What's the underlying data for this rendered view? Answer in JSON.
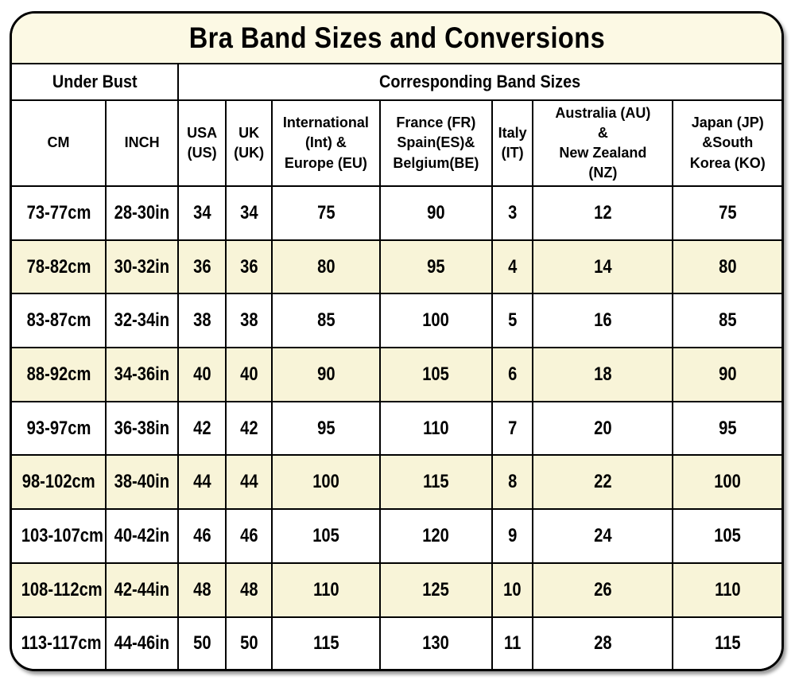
{
  "title": "Bra Band Sizes and Conversions",
  "chart_data": {
    "type": "table",
    "title": "Bra Band Sizes and Conversions",
    "column_groups": [
      {
        "label": "Under Bust",
        "span": 2
      },
      {
        "label": "Corresponding Band Sizes",
        "span": 7
      }
    ],
    "columns": [
      "CM",
      "INCH",
      "USA\n(US)",
      "UK\n(UK)",
      "International\n(Int) &\nEurope (EU)",
      "France (FR)\nSpain(ES)&\nBelgium(BE)",
      "Italy\n(IT)",
      "Australia (AU)\n&\nNew Zealand\n(NZ)",
      "Japan (JP)\n&South\nKorea (KO)"
    ],
    "rows": [
      [
        "73-77cm",
        "28-30in",
        "34",
        "34",
        "75",
        "90",
        "3",
        "12",
        "75"
      ],
      [
        "78-82cm",
        "30-32in",
        "36",
        "36",
        "80",
        "95",
        "4",
        "14",
        "80"
      ],
      [
        "83-87cm",
        "32-34in",
        "38",
        "38",
        "85",
        "100",
        "5",
        "16",
        "85"
      ],
      [
        "88-92cm",
        "34-36in",
        "40",
        "40",
        "90",
        "105",
        "6",
        "18",
        "90"
      ],
      [
        "93-97cm",
        "36-38in",
        "42",
        "42",
        "95",
        "110",
        "7",
        "20",
        "95"
      ],
      [
        "98-102cm",
        "38-40in",
        "44",
        "44",
        "100",
        "115",
        "8",
        "22",
        "100"
      ],
      [
        "103-107cm",
        "40-42in",
        "46",
        "46",
        "105",
        "120",
        "9",
        "24",
        "105"
      ],
      [
        "108-112cm",
        "42-44in",
        "48",
        "48",
        "110",
        "125",
        "10",
        "26",
        "110"
      ],
      [
        "113-117cm",
        "44-46in",
        "50",
        "50",
        "115",
        "130",
        "11",
        "28",
        "115"
      ]
    ],
    "highlighted_rows": [
      1,
      3,
      5,
      7
    ],
    "layout": {
      "grid": "on",
      "legend": "none"
    },
    "colors": {
      "title_bg": "#FCF9E4",
      "highlight_row_bg": "#F8F4D8",
      "row_bg": "#FFFFFF",
      "border": "#000000",
      "text": "#000000"
    }
  }
}
